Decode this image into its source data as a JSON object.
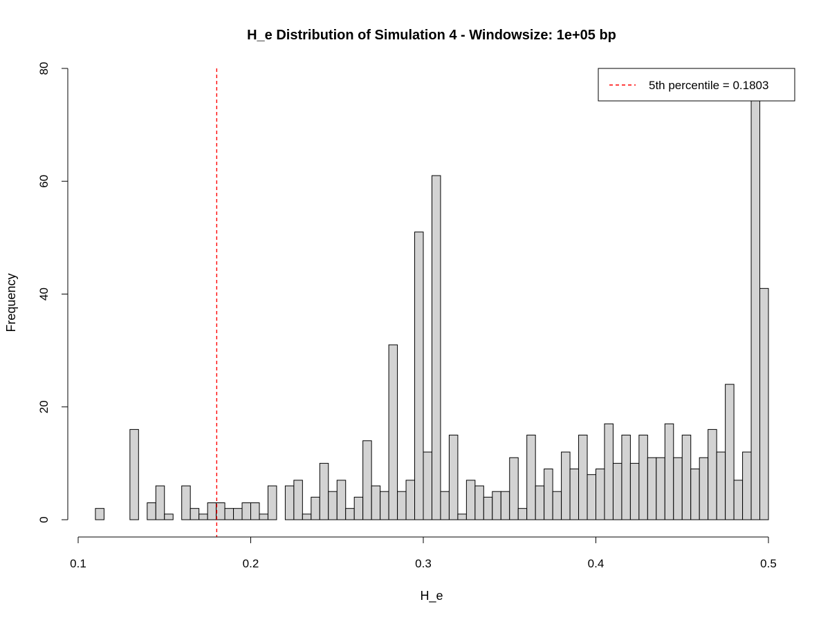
{
  "chart_data": {
    "type": "bar",
    "title": "H_e Distribution of Simulation 4 - Windowsize: 1e+05 bp",
    "xlabel": "H_e",
    "ylabel": "Frequency",
    "xlim": [
      0.1,
      0.5
    ],
    "ylim": [
      0,
      80
    ],
    "x_ticks": [
      "0.1",
      "0.2",
      "0.3",
      "0.4",
      "0.5"
    ],
    "y_ticks": [
      "0",
      "20",
      "40",
      "60",
      "80"
    ],
    "bin_width": 0.005,
    "bins_start": 0.11,
    "values": [
      2,
      0,
      0,
      0,
      16,
      0,
      3,
      6,
      1,
      0,
      6,
      2,
      1,
      3,
      3,
      2,
      2,
      3,
      3,
      1,
      6,
      0,
      6,
      7,
      1,
      4,
      10,
      5,
      7,
      2,
      4,
      14,
      6,
      5,
      31,
      5,
      7,
      51,
      12,
      61,
      5,
      15,
      1,
      7,
      6,
      4,
      5,
      5,
      11,
      2,
      15,
      6,
      9,
      5,
      12,
      9,
      15,
      8,
      9,
      17,
      10,
      15,
      10,
      15,
      11,
      11,
      17,
      11,
      15,
      9,
      11,
      16,
      12,
      24,
      7,
      12,
      75,
      41
    ],
    "bar_fill": "#d3d3d3",
    "bar_stroke": "#000000",
    "grid": false,
    "reference_line": {
      "x": 0.1803,
      "color": "#ff0000",
      "style": "dashed"
    },
    "legend": {
      "position": "top-right",
      "entries": [
        "5th percentile = 0.1803"
      ]
    }
  }
}
